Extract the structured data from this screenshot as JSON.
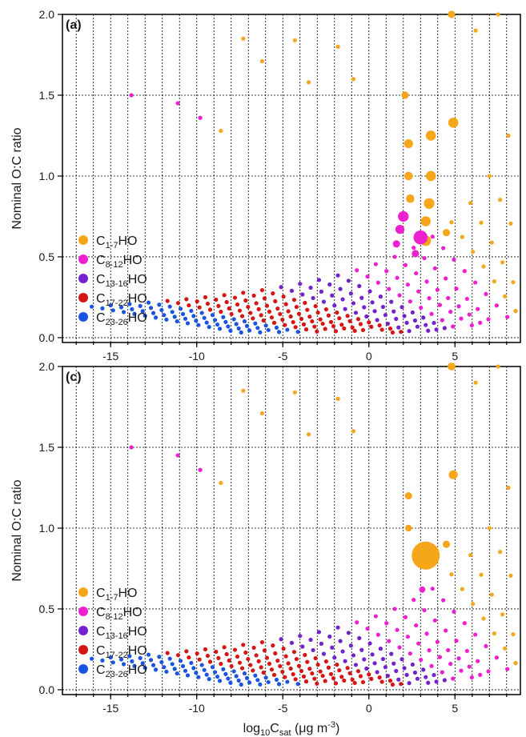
{
  "chart_data": [
    {
      "type": "scatter",
      "panel_label": "(a)",
      "title": "",
      "xlabel": "",
      "ylabel": "Nominal O:C ratio",
      "xlim": [
        -17.8,
        8.8
      ],
      "ylim": [
        -0.03,
        2.0
      ],
      "x_ticks": [
        -15,
        -10,
        -5,
        0,
        5
      ],
      "y_ticks": [
        0.0,
        0.5,
        1.0,
        1.5,
        2.0
      ],
      "y_tick_labels": [
        "0.0",
        "0.5",
        "1.0",
        "1.5",
        "2.0"
      ],
      "grid": "dotted",
      "legend_position": "bottom-left",
      "series": [
        {
          "key": "c1_7",
          "legend": {
            "base": "C",
            "sub": "1-7",
            "tail": "HO"
          },
          "color": "#F5A61A"
        },
        {
          "key": "c8_12",
          "legend": {
            "base": "C",
            "sub": "8-12",
            "tail": "HO"
          },
          "color": "#EE1ED1"
        },
        {
          "key": "c13_16",
          "legend": {
            "base": "C",
            "sub": "13-16",
            "tail": "HO"
          },
          "color": "#7422CC"
        },
        {
          "key": "c17_22",
          "legend": {
            "base": "C",
            "sub": "17-22",
            "tail": "HO"
          },
          "color": "#D61515"
        },
        {
          "key": "c23_26",
          "legend": {
            "base": "C",
            "sub": "23-26",
            "tail": "HO"
          },
          "color": "#1A55E0"
        }
      ],
      "highlights": [
        {
          "series": "c1_7",
          "x": 4.9,
          "y": 1.33,
          "size": 1.8
        },
        {
          "series": "c1_7",
          "x": 3.6,
          "y": 1.25,
          "size": 1.8
        },
        {
          "series": "c1_7",
          "x": 2.3,
          "y": 1.2,
          "size": 1.6
        },
        {
          "series": "c1_7",
          "x": 3.6,
          "y": 1.0,
          "size": 1.8
        },
        {
          "series": "c1_7",
          "x": 2.3,
          "y": 1.0,
          "size": 1.5
        },
        {
          "series": "c1_7",
          "x": 3.5,
          "y": 0.83,
          "size": 1.9
        },
        {
          "series": "c1_7",
          "x": 2.4,
          "y": 0.86,
          "size": 1.5
        },
        {
          "series": "c1_7",
          "x": 3.3,
          "y": 0.72,
          "size": 1.8
        },
        {
          "series": "c1_7",
          "x": 3.3,
          "y": 0.6,
          "size": 1.9
        },
        {
          "series": "c1_7",
          "x": 4.5,
          "y": 0.65,
          "size": 1.3
        },
        {
          "series": "c1_7",
          "x": 4.8,
          "y": 2.0,
          "size": 1.3
        },
        {
          "series": "c1_7",
          "x": 2.1,
          "y": 1.5,
          "size": 1.3
        },
        {
          "series": "c8_12",
          "x": 3.0,
          "y": 0.62,
          "size": 2.5
        },
        {
          "series": "c8_12",
          "x": 2.0,
          "y": 0.75,
          "size": 1.9
        },
        {
          "series": "c8_12",
          "x": 1.8,
          "y": 0.67,
          "size": 1.6
        },
        {
          "series": "c8_12",
          "x": 1.6,
          "y": 0.58,
          "size": 1.3
        },
        {
          "series": "c8_12",
          "x": 2.7,
          "y": 0.52,
          "size": 1.3
        }
      ]
    },
    {
      "type": "scatter",
      "panel_label": "(c)",
      "title": "",
      "xlabel": {
        "base": "log",
        "sub": "10",
        "mid": "C",
        "sub2": "sat",
        "tail": " (μg m",
        "sup": "-3",
        "end": ")"
      },
      "ylabel": "Nominal O:C ratio",
      "xlim": [
        -17.8,
        8.8
      ],
      "ylim": [
        -0.03,
        2.0
      ],
      "x_ticks": [
        -15,
        -10,
        -5,
        0,
        5
      ],
      "y_ticks": [
        0.0,
        0.5,
        1.0,
        1.5,
        2.0
      ],
      "y_tick_labels": [
        "0.0",
        "0.5",
        "1.0",
        "1.5",
        "2.0"
      ],
      "grid": "dotted",
      "legend_position": "bottom-left",
      "series": [
        {
          "key": "c1_7",
          "legend": {
            "base": "C",
            "sub": "1-7",
            "tail": "HO"
          },
          "color": "#F5A61A"
        },
        {
          "key": "c8_12",
          "legend": {
            "base": "C",
            "sub": "8-12",
            "tail": "HO"
          },
          "color": "#EE1ED1"
        },
        {
          "key": "c13_16",
          "legend": {
            "base": "C",
            "sub": "13-16",
            "tail": "HO"
          },
          "color": "#7422CC"
        },
        {
          "key": "c17_22",
          "legend": {
            "base": "C",
            "sub": "17-22",
            "tail": "HO"
          },
          "color": "#D61515"
        },
        {
          "key": "c23_26",
          "legend": {
            "base": "C",
            "sub": "23-26",
            "tail": "HO"
          },
          "color": "#1A55E0"
        }
      ],
      "highlights": [
        {
          "series": "c1_7",
          "x": 3.3,
          "y": 0.83,
          "size": 5.0
        },
        {
          "series": "c1_7",
          "x": 4.8,
          "y": 2.0,
          "size": 1.4
        },
        {
          "series": "c1_7",
          "x": 4.9,
          "y": 1.33,
          "size": 1.6
        },
        {
          "series": "c1_7",
          "x": 2.3,
          "y": 1.2,
          "size": 1.3
        },
        {
          "series": "c1_7",
          "x": 2.3,
          "y": 1.0,
          "size": 1.2
        },
        {
          "series": "c1_7",
          "x": 4.5,
          "y": 0.9,
          "size": 1.3
        },
        {
          "series": "c8_12",
          "x": 3.1,
          "y": 0.62,
          "size": 1.1
        }
      ]
    }
  ]
}
